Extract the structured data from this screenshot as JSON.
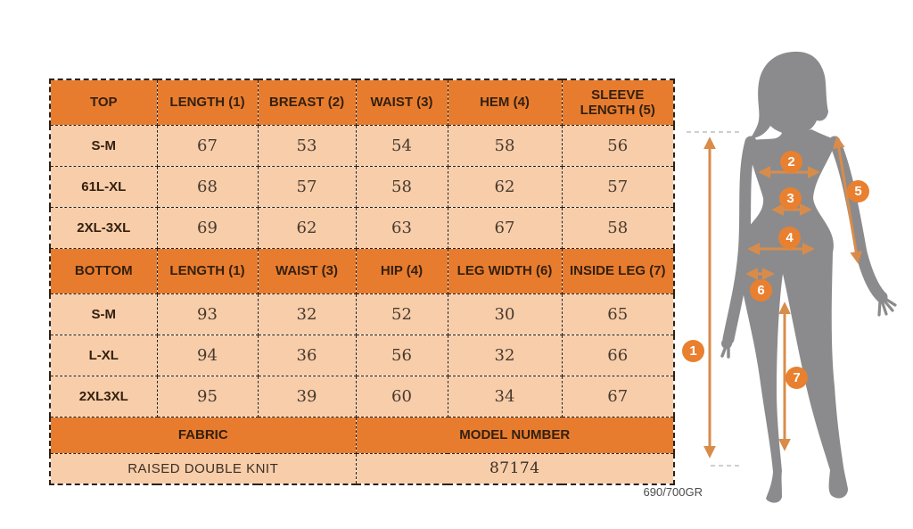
{
  "table": {
    "sections": [
      {
        "header": [
          "TOP",
          "LENGTH (1)",
          "BREAST (2)",
          "WAIST (3)",
          "HEM (4)",
          "SLEEVE LENGTH (5)"
        ],
        "rows": [
          {
            "label": "S-M",
            "values": [
              "67",
              "53",
              "54",
              "58",
              "56"
            ]
          },
          {
            "label": "61L-XL",
            "values": [
              "68",
              "57",
              "58",
              "62",
              "57"
            ]
          },
          {
            "label": "2XL-3XL",
            "values": [
              "69",
              "62",
              "63",
              "67",
              "58"
            ]
          }
        ]
      },
      {
        "header": [
          "BOTTOM",
          "LENGTH (1)",
          "WAIST (3)",
          "HIP (4)",
          "LEG WIDTH (6)",
          "INSIDE LEG (7)"
        ],
        "rows": [
          {
            "label": "S-M",
            "values": [
              "93",
              "32",
              "52",
              "30",
              "65"
            ]
          },
          {
            "label": "L-XL",
            "values": [
              "94",
              "36",
              "56",
              "32",
              "66"
            ]
          },
          {
            "label": "2XL3XL",
            "values": [
              "95",
              "39",
              "60",
              "34",
              "67"
            ]
          }
        ]
      }
    ],
    "footer": {
      "headers": [
        "FABRIC",
        "MODEL NUMBER"
      ],
      "values": [
        "RAISED DOUBLE KNIT",
        "87174"
      ]
    }
  },
  "note": "690/700GR",
  "figure": {
    "markers": [
      "1",
      "2",
      "3",
      "4",
      "5",
      "6",
      "7"
    ]
  },
  "colors": {
    "header_bg": "#E87C2E",
    "cell_bg": "#F8CDAA",
    "marker_bg": "#E8802F",
    "arrow": "#D98C4A",
    "silhouette_gray": "#8B8B8D",
    "border": "#2b2118"
  }
}
